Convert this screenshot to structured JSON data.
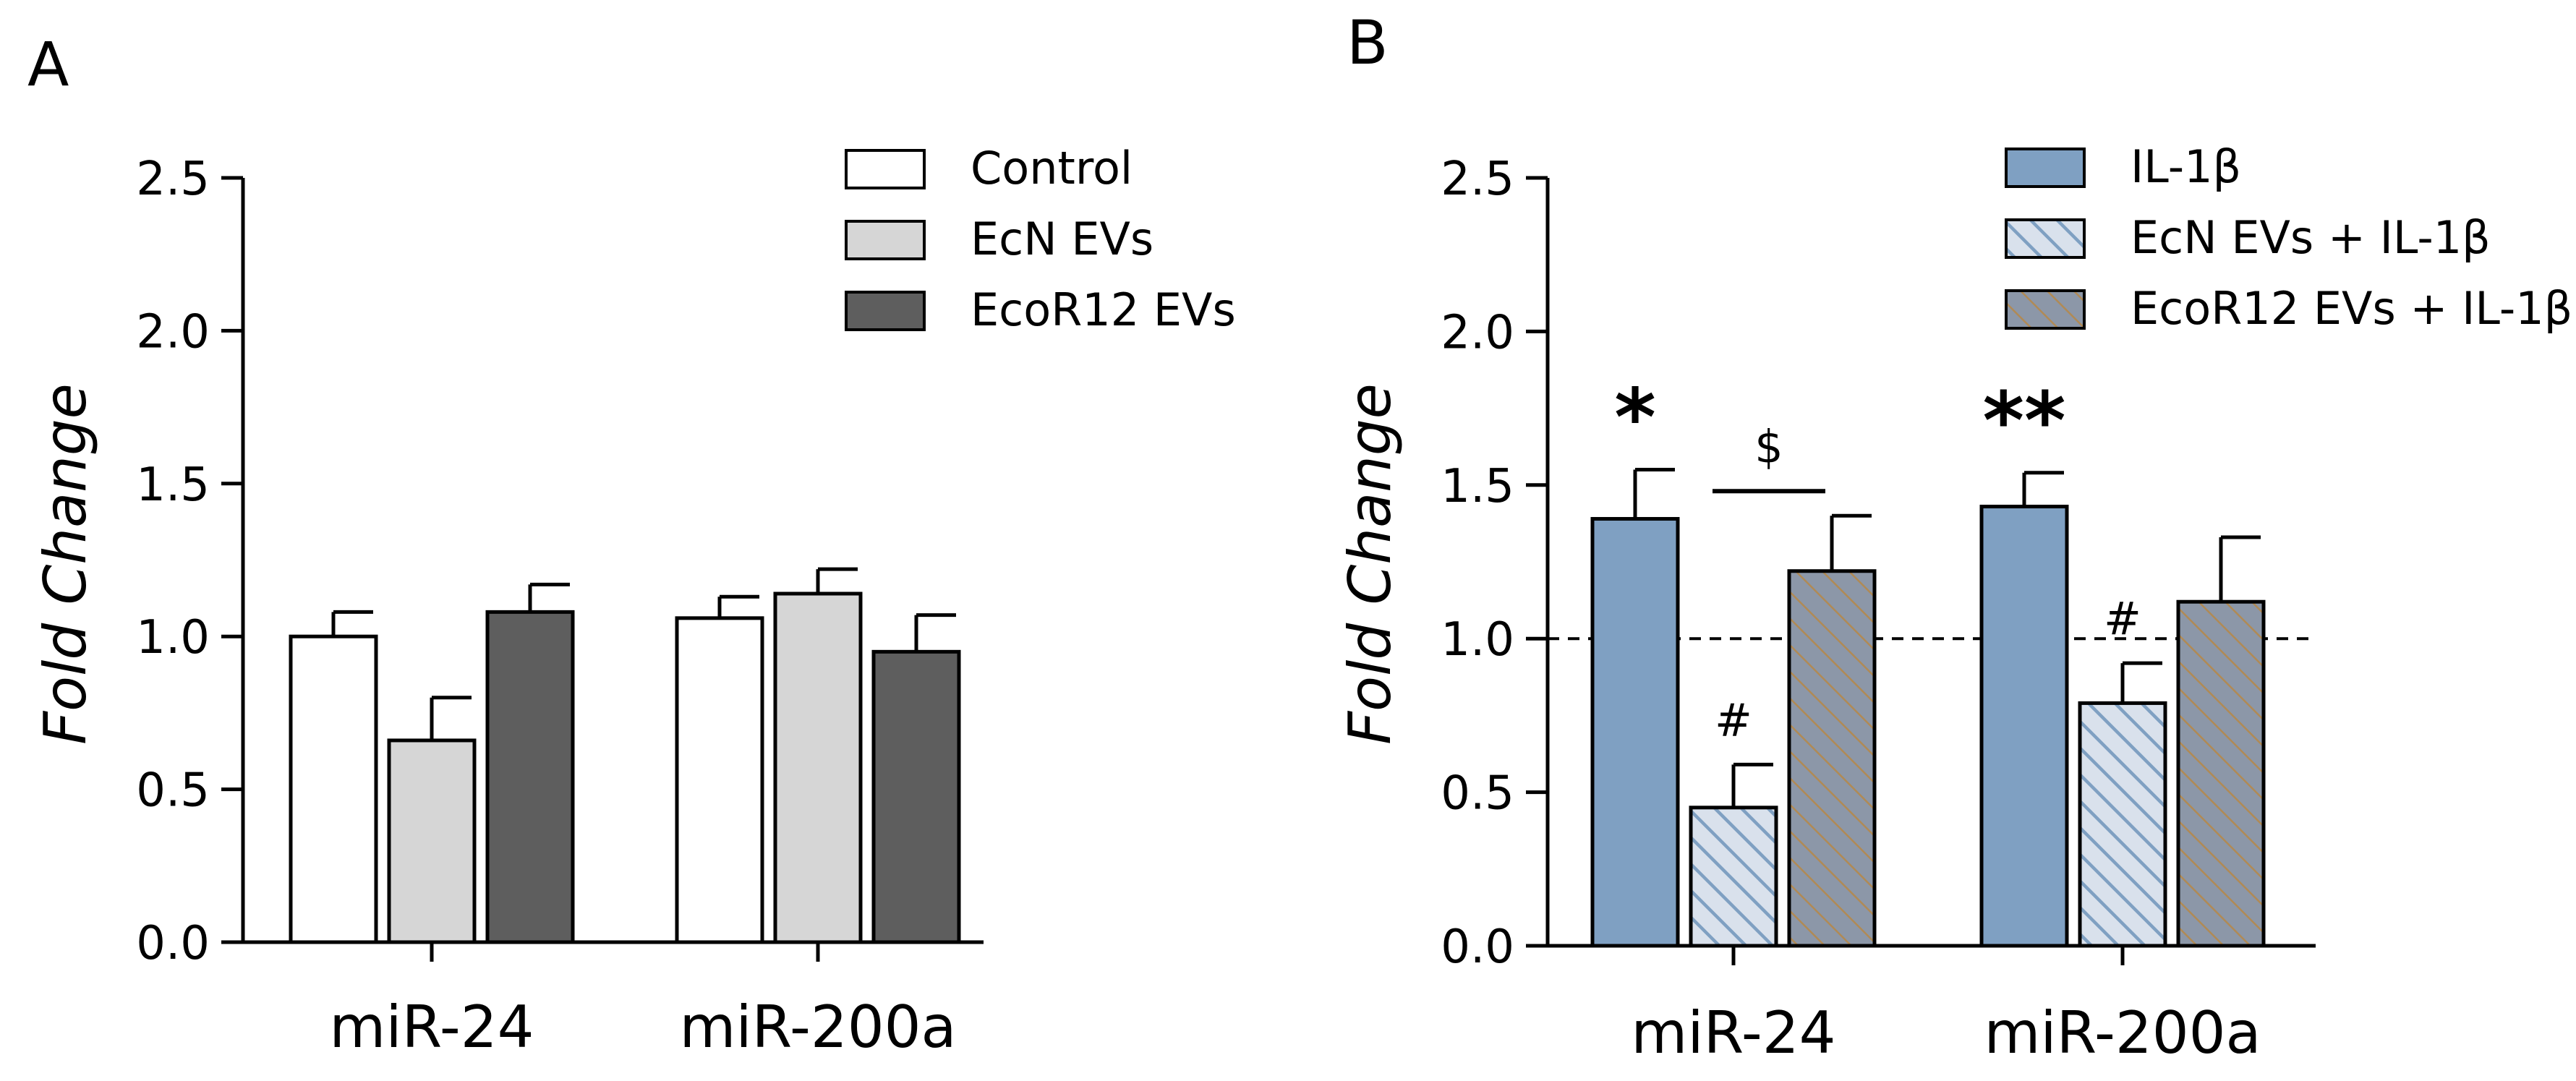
{
  "chart_data": [
    {
      "panel": "A",
      "type": "bar",
      "ylabel": "Fold Change",
      "ylim": [
        0,
        2.5
      ],
      "yticks": [
        "0.0",
        "0.5",
        "1.0",
        "1.5",
        "2.0",
        "2.5"
      ],
      "categories": [
        "miR-24",
        "miR-200a"
      ],
      "legend_position": "top-right",
      "series": [
        {
          "name": "Control",
          "color": "#ffffff",
          "pattern": "solid",
          "values": [
            1.0,
            1.06
          ],
          "errors": [
            0.08,
            0.07
          ]
        },
        {
          "name": "EcN EVs",
          "color": "#d6d6d6",
          "pattern": "solid",
          "values": [
            0.66,
            1.14
          ],
          "errors": [
            0.14,
            0.08
          ]
        },
        {
          "name": "EcoR12 EVs",
          "color": "#5e5e5e",
          "pattern": "solid",
          "values": [
            1.08,
            0.95
          ],
          "errors": [
            0.09,
            0.12
          ]
        }
      ],
      "annotations": []
    },
    {
      "panel": "B",
      "type": "bar",
      "ylabel": "Fold Change",
      "ylim": [
        0,
        2.5
      ],
      "yticks": [
        "0.0",
        "0.5",
        "1.0",
        "1.5",
        "2.0",
        "2.5"
      ],
      "categories": [
        "miR-24",
        "miR-200a"
      ],
      "legend_position": "top-right",
      "reference_line": 1.0,
      "series": [
        {
          "name": "IL-1β",
          "color": "#7fa0c2",
          "pattern": "solid",
          "values": [
            1.39,
            1.43
          ],
          "errors": [
            0.16,
            0.11
          ]
        },
        {
          "name": "EcN EVs + IL-1β",
          "color": "#d9e1ec",
          "pattern": "hatch",
          "values": [
            0.45,
            0.79
          ],
          "errors": [
            0.14,
            0.13
          ]
        },
        {
          "name": "EcoR12 EVs + IL-1β",
          "color": "#8c97a8",
          "pattern": "hatch",
          "values": [
            1.22,
            1.12
          ],
          "errors": [
            0.18,
            0.21
          ]
        }
      ],
      "annotations": [
        {
          "text": "*",
          "category": 0,
          "series": 0,
          "kind": "star"
        },
        {
          "text": "#",
          "category": 0,
          "series": 1,
          "kind": "symbol"
        },
        {
          "text": "$",
          "category": 0,
          "series": "bracket-1-2",
          "kind": "symbol"
        },
        {
          "text": "**",
          "category": 1,
          "series": 0,
          "kind": "star"
        },
        {
          "text": "#",
          "category": 1,
          "series": 1,
          "kind": "symbol"
        }
      ]
    }
  ]
}
